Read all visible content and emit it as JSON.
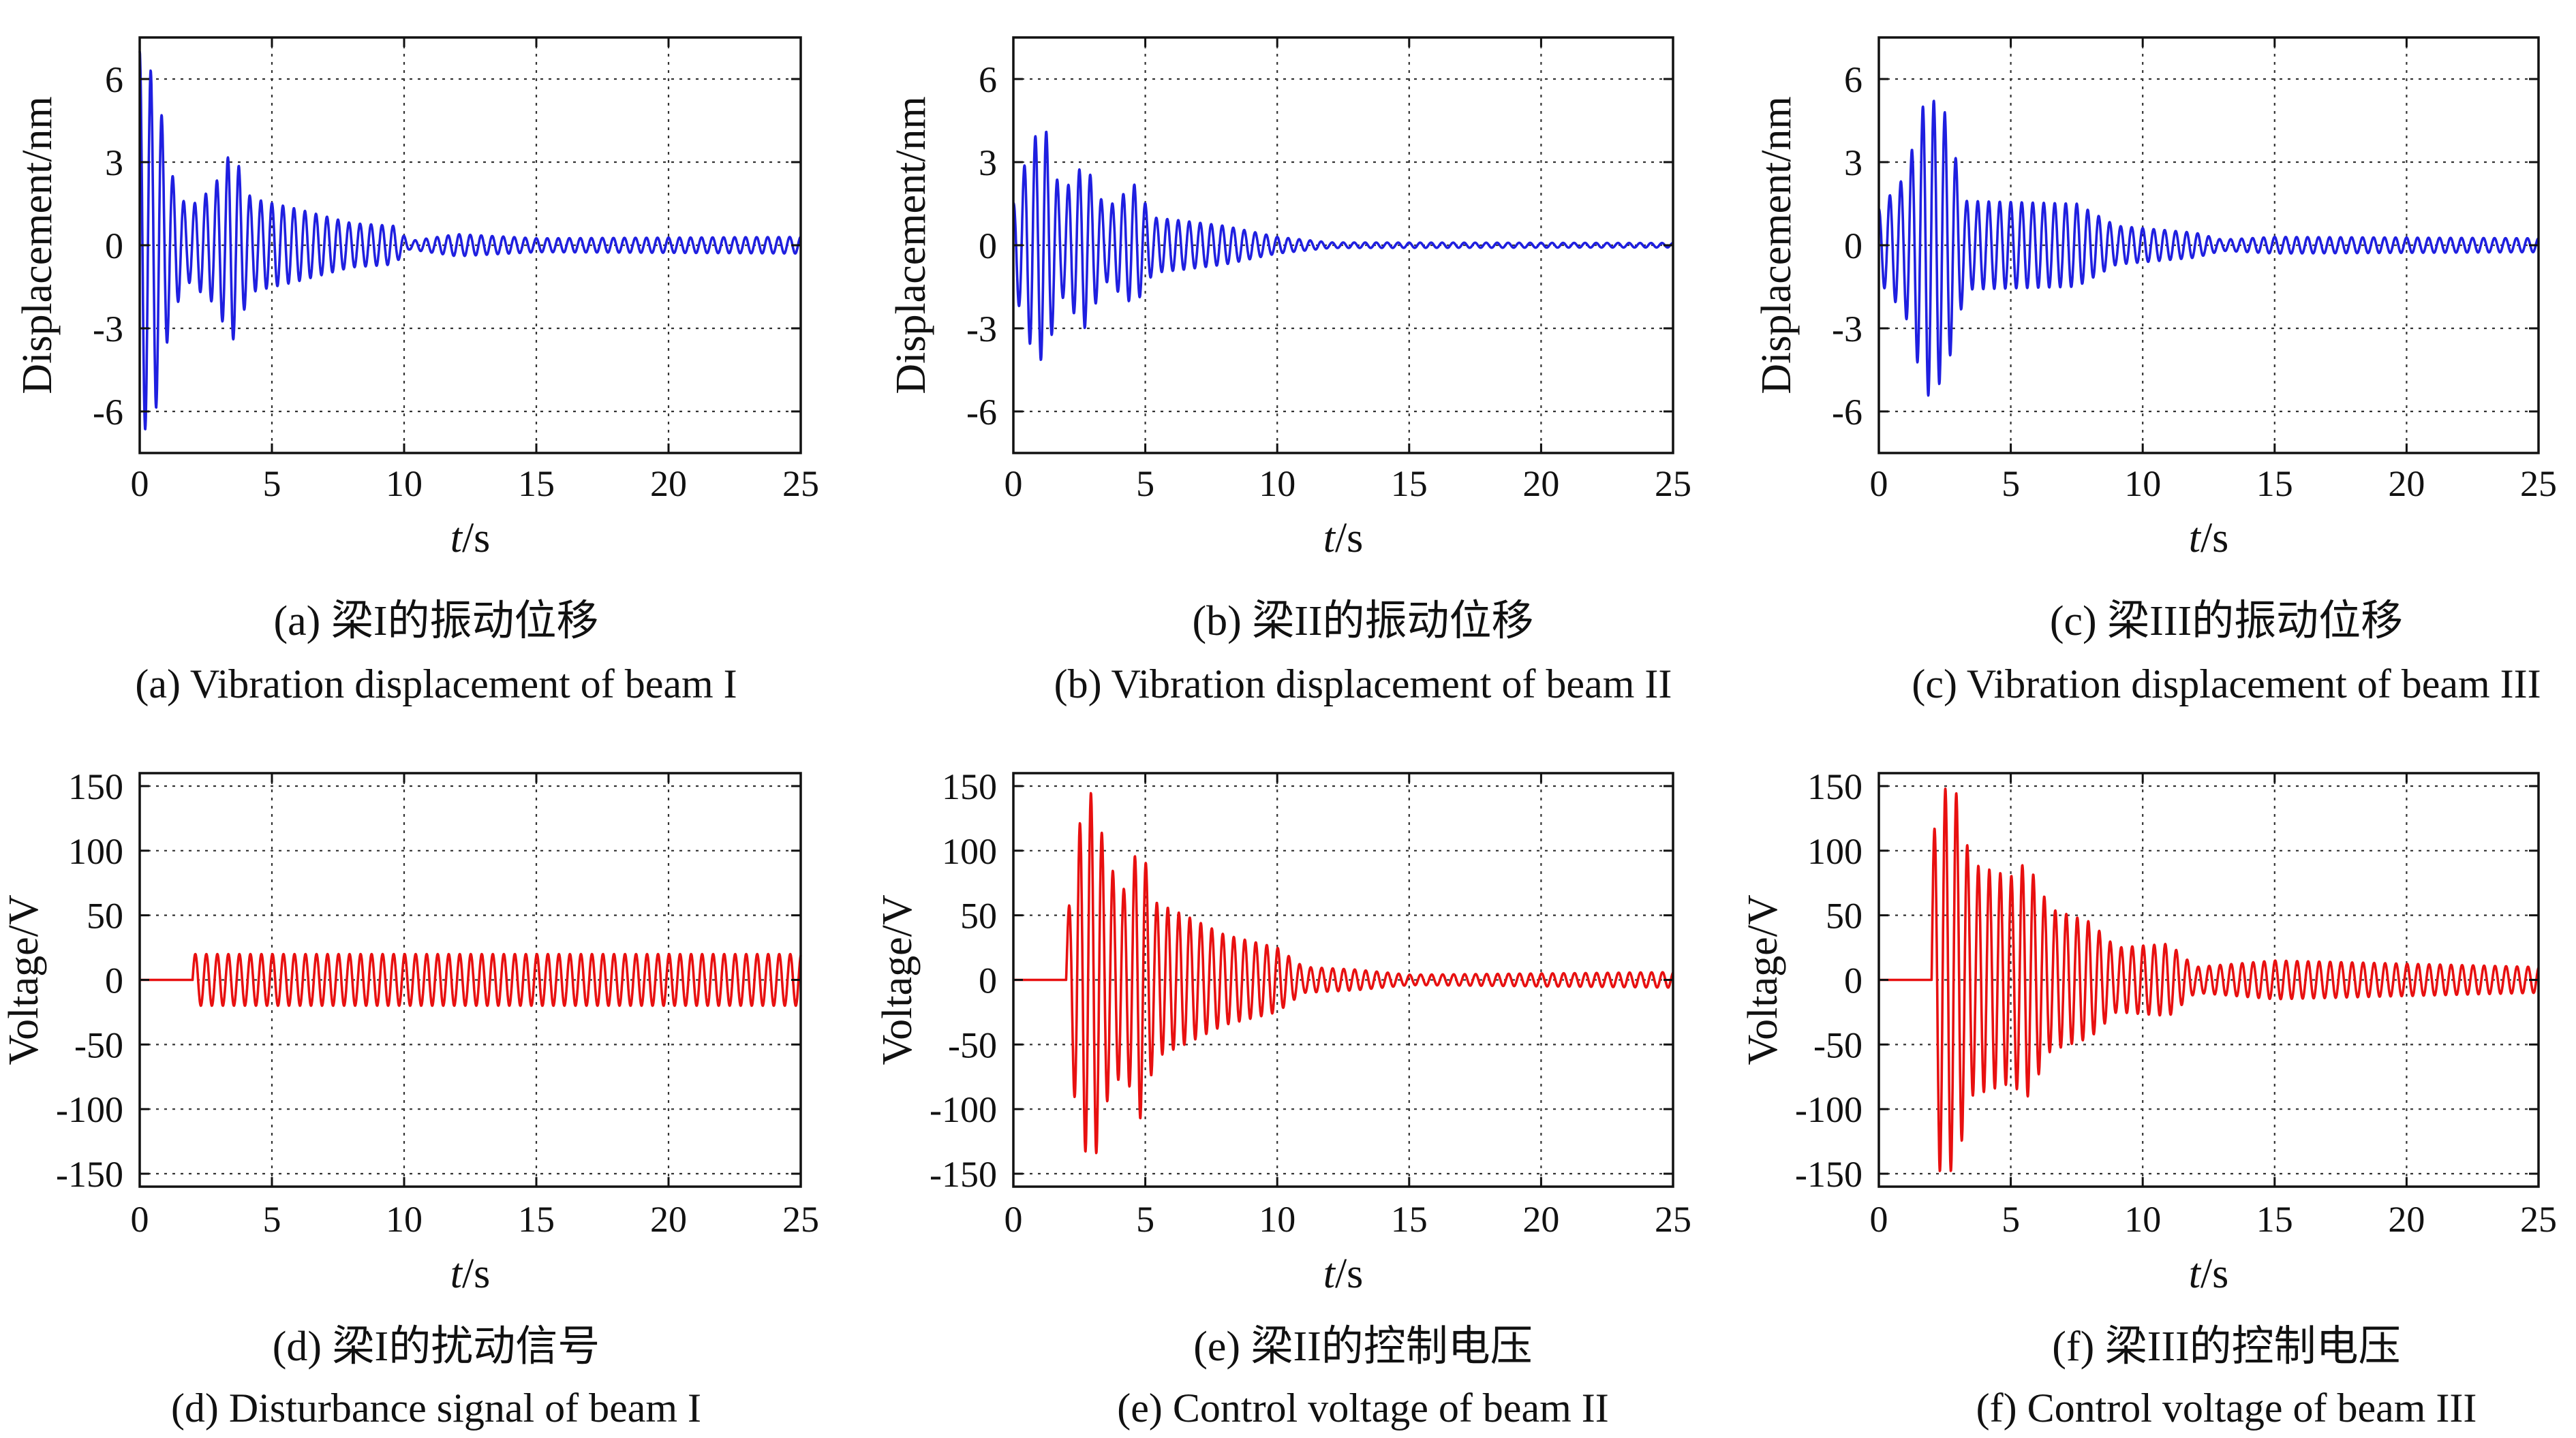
{
  "chart_data": [
    {
      "id": "a",
      "type": "line",
      "caption_cn": "(a) 梁I的振动位移",
      "caption_en": "(a) Vibration displacement of beam I",
      "xlabel_prefix": "t",
      "xlabel_suffix": "/s",
      "ylabel": "Displacement/nm",
      "xlim": [
        0,
        25
      ],
      "ylim": [
        -7.5,
        7.5
      ],
      "xticks": [
        0,
        5,
        10,
        15,
        20,
        25
      ],
      "yticks": [
        -6,
        -3,
        0,
        3,
        6
      ],
      "grid": true,
      "color": "#1f1fe0",
      "series": [
        {
          "name": "displacement",
          "start": 0,
          "envelope": [
            [
              0,
              7
            ],
            [
              0.6,
              6
            ],
            [
              1.2,
              2.6
            ],
            [
              1.8,
              1.3
            ],
            [
              2.8,
              2.1
            ],
            [
              3.5,
              3.5
            ],
            [
              4.2,
              1.7
            ],
            [
              6,
              1.3
            ],
            [
              8,
              0.8
            ],
            [
              9.6,
              0.7
            ],
            [
              10.2,
              0.15
            ],
            [
              12,
              0.4
            ],
            [
              13,
              0.35
            ],
            [
              15,
              0.25
            ],
            [
              25,
              0.3
            ]
          ],
          "freq": 2.4
        }
      ]
    },
    {
      "id": "b",
      "type": "line",
      "caption_cn": "(b) 梁II的振动位移",
      "caption_en": "(b) Vibration displacement of beam II",
      "xlabel_prefix": "t",
      "xlabel_suffix": "/s",
      "ylabel": "Displacement/nm",
      "xlim": [
        0,
        25
      ],
      "ylim": [
        -7.5,
        7.5
      ],
      "xticks": [
        0,
        5,
        10,
        15,
        20,
        25
      ],
      "yticks": [
        -6,
        -3,
        0,
        3,
        6
      ],
      "grid": true,
      "color": "#1f1fe0",
      "series": [
        {
          "name": "displacement",
          "start": 0,
          "envelope": [
            [
              0,
              1.5
            ],
            [
              0.7,
              3.8
            ],
            [
              1.2,
              4.3
            ],
            [
              1.8,
              1.8
            ],
            [
              2.7,
              3.0
            ],
            [
              3.5,
              1.3
            ],
            [
              4.6,
              2.2
            ],
            [
              5.3,
              1.0
            ],
            [
              6.3,
              0.9
            ],
            [
              8,
              0.7
            ],
            [
              10,
              0.3
            ],
            [
              12,
              0.1
            ],
            [
              25,
              0.08
            ]
          ],
          "freq": 2.4
        }
      ]
    },
    {
      "id": "c",
      "type": "line",
      "caption_cn": "(c) 梁III的振动位移",
      "caption_en": "(c) Vibration displacement of beam III",
      "xlabel_prefix": "t",
      "xlabel_suffix": "/s",
      "ylabel": "Displacement/nm",
      "xlim": [
        0,
        25
      ],
      "ylim": [
        -7.5,
        7.5
      ],
      "xticks": [
        0,
        5,
        10,
        15,
        20,
        25
      ],
      "yticks": [
        -6,
        -3,
        0,
        3,
        6
      ],
      "grid": true,
      "color": "#1f1fe0",
      "series": [
        {
          "name": "displacement",
          "start": 0,
          "envelope": [
            [
              0,
              1.3
            ],
            [
              1.0,
              2.5
            ],
            [
              1.8,
              5.5
            ],
            [
              2.5,
              4.8
            ],
            [
              3.3,
              1.6
            ],
            [
              7.5,
              1.5
            ],
            [
              9,
              0.7
            ],
            [
              12,
              0.45
            ],
            [
              13,
              0.2
            ],
            [
              15,
              0.3
            ],
            [
              25,
              0.25
            ]
          ],
          "freq": 2.4
        }
      ]
    },
    {
      "id": "d",
      "type": "line",
      "caption_cn": "(d) 梁I的扰动信号",
      "caption_en": "(d) Disturbance signal of beam I",
      "xlabel_prefix": "t",
      "xlabel_suffix": "/s",
      "ylabel": "Voltage/V",
      "xlim": [
        0,
        25
      ],
      "ylim": [
        -160,
        160
      ],
      "xticks": [
        0,
        5,
        10,
        15,
        20,
        25
      ],
      "yticks": [
        -150,
        -100,
        -50,
        0,
        50,
        100,
        150
      ],
      "grid": true,
      "color": "#e81010",
      "series": [
        {
          "name": "disturbance",
          "start": 2.0,
          "envelope": [
            [
              2.0,
              20
            ],
            [
              25,
              20
            ]
          ],
          "freq": 2.4
        }
      ]
    },
    {
      "id": "e",
      "type": "line",
      "caption_cn": "(e) 梁II的控制电压",
      "caption_en": "(e) Control voltage of beam II",
      "xlabel_prefix": "t",
      "xlabel_suffix": "/s",
      "ylabel": "Voltage/V",
      "xlim": [
        0,
        25
      ],
      "ylim": [
        -160,
        160
      ],
      "xticks": [
        0,
        5,
        10,
        15,
        20,
        25
      ],
      "yticks": [
        -150,
        -100,
        -50,
        0,
        50,
        100,
        150
      ],
      "grid": true,
      "color": "#e81010",
      "series": [
        {
          "name": "control_voltage",
          "start": 2.0,
          "envelope": [
            [
              2.0,
              40
            ],
            [
              2.5,
              120
            ],
            [
              3.0,
              148
            ],
            [
              3.6,
              90
            ],
            [
              4.2,
              70
            ],
            [
              4.8,
              108
            ],
            [
              5.4,
              60
            ],
            [
              6.5,
              50
            ],
            [
              8,
              35
            ],
            [
              10,
              25
            ],
            [
              11,
              10
            ],
            [
              13,
              8
            ],
            [
              15,
              4
            ],
            [
              25,
              6
            ]
          ],
          "freq": 2.4
        }
      ]
    },
    {
      "id": "f",
      "type": "line",
      "caption_cn": "(f) 梁III的控制电压",
      "caption_en": "(f) Control voltage of beam III",
      "xlabel_prefix": "t",
      "xlabel_suffix": "/s",
      "ylabel": "Voltage/V",
      "xlim": [
        0,
        25
      ],
      "ylim": [
        -160,
        160
      ],
      "xticks": [
        0,
        5,
        10,
        15,
        20,
        25
      ],
      "yticks": [
        -150,
        -100,
        -50,
        0,
        50,
        100,
        150
      ],
      "grid": true,
      "color": "#e81010",
      "series": [
        {
          "name": "control_voltage",
          "start": 2.0,
          "envelope": [
            [
              2.0,
              100
            ],
            [
              2.3,
              148
            ],
            [
              2.9,
              148
            ],
            [
              3.5,
              90
            ],
            [
              5.0,
              80
            ],
            [
              5.6,
              92
            ],
            [
              6.5,
              55
            ],
            [
              8,
              45
            ],
            [
              9,
              25
            ],
            [
              11,
              28
            ],
            [
              12,
              10
            ],
            [
              15,
              15
            ],
            [
              25,
              10
            ]
          ],
          "freq": 2.4
        }
      ]
    }
  ]
}
